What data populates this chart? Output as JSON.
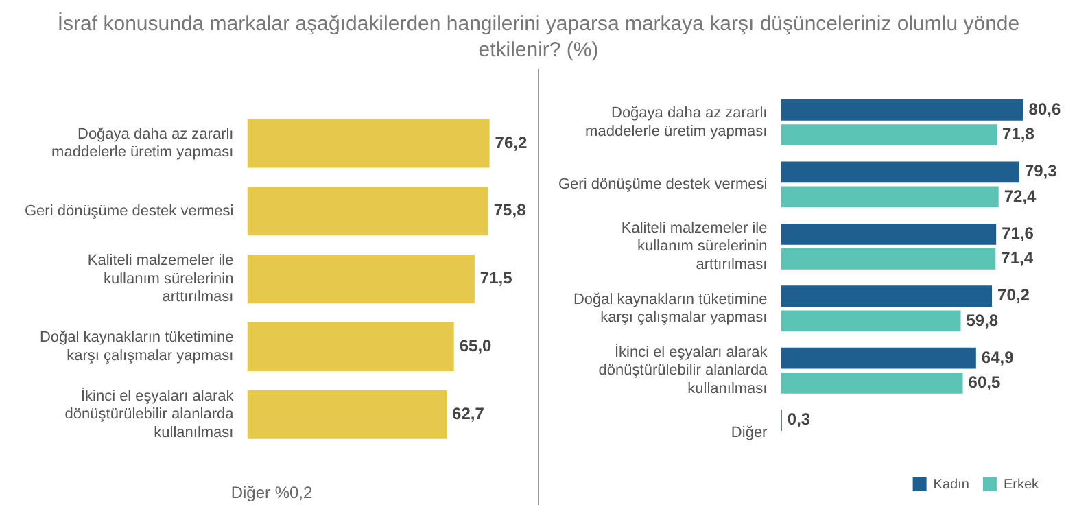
{
  "chart_data": [
    {
      "type": "bar",
      "orientation": "horizontal",
      "title": "İsraf konusunda markalar aşağıdakilerden hangilerini yaparsa markaya karşı düşünceleriniz olumlu yönde etkilenir? (%)",
      "categories": [
        "Doğaya daha az zararlı maddelerle üretim yapması",
        "Geri dönüşüme destek vermesi",
        "Kaliteli malzemeler ile kullanım sürelerinin arttırılması",
        "Doğal kaynakların tüketimine karşı çalışmalar yapması",
        "İkinci el eşyaları alarak dönüştürülebilir alanlarda kullanılması"
      ],
      "values": [
        76.2,
        75.8,
        71.5,
        65.0,
        62.7
      ],
      "color": "#e6c84a",
      "value_labels": [
        "76,2",
        "75,8",
        "71,5",
        "65,0",
        "62,7"
      ],
      "annotations": [
        "Diğer %0,2"
      ],
      "grid": false,
      "legend": false
    },
    {
      "type": "bar",
      "orientation": "horizontal",
      "categories": [
        "Doğaya daha az zararlı maddelerle üretim yapması",
        "Geri dönüşüme destek vermesi",
        "Kaliteli malzemeler ile kullanım sürelerinin arttırılması",
        "Doğal kaynakların tüketimine karşı çalışmalar yapması",
        "İkinci el eşyaları alarak dönüştürülebilir alanlarda kullanılması",
        "Diğer"
      ],
      "series": [
        {
          "name": "Kadın",
          "color": "#1f5f8f",
          "values": [
            80.6,
            79.3,
            71.6,
            70.2,
            64.9,
            0.3
          ],
          "value_labels": [
            "80,6",
            "79,3",
            "71,6",
            "70,2",
            "64,9",
            "0,3"
          ]
        },
        {
          "name": "Erkek",
          "color": "#5cc4b4",
          "values": [
            71.8,
            72.4,
            71.4,
            59.8,
            60.5,
            null
          ],
          "value_labels": [
            "71,8",
            "72,4",
            "71,4",
            "59,8",
            "60,5",
            null
          ]
        }
      ],
      "grid": false,
      "legend": "bottom right"
    }
  ]
}
